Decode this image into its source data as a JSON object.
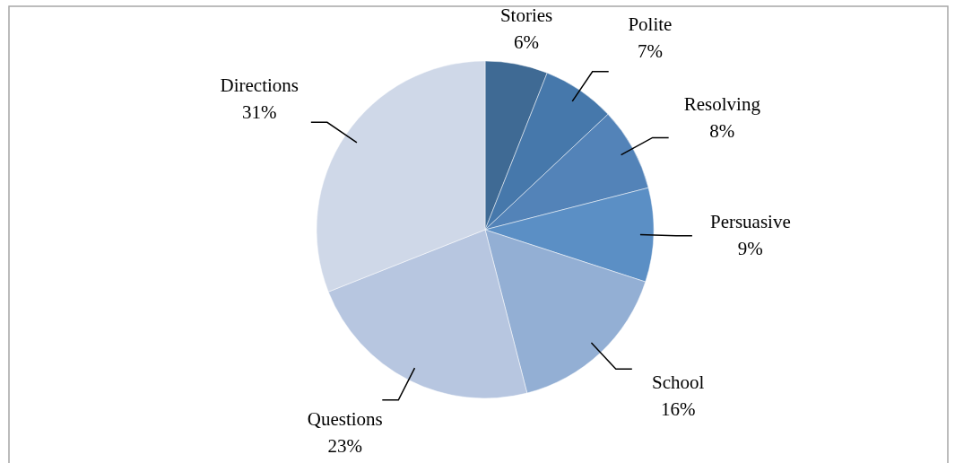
{
  "chart_data": {
    "type": "pie",
    "categories": [
      "Stories",
      "Polite",
      "Resolving",
      "Persuasive",
      "School",
      "Questions",
      "Directions"
    ],
    "values": [
      6,
      7,
      8,
      9,
      16,
      23,
      31
    ],
    "colors": [
      "#3f6a94",
      "#4678ab",
      "#5383b8",
      "#5b8fc5",
      "#93afd4",
      "#b7c6e0",
      "#cfd8e8"
    ],
    "value_labels": [
      "6%",
      "7%",
      "8%",
      "9%",
      "16%",
      "23%",
      "31%"
    ]
  }
}
